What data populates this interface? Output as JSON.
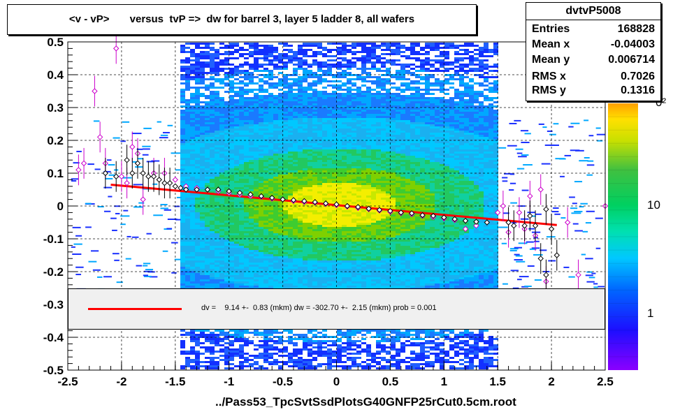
{
  "title": "<v - vP>       versus  tvP =>  dw for barrel 3, layer 5 ladder 8, all wafers",
  "stats": {
    "name": "dvtvP5008",
    "rows": [
      {
        "key": "Entries",
        "value": "168828"
      },
      {
        "key": "Mean x",
        "value": "-0.04003"
      },
      {
        "key": "Mean y",
        "value": "0.006714"
      },
      {
        "key": "RMS x",
        "value": "0.7026"
      },
      {
        "key": "RMS y",
        "value": "0.1316"
      }
    ]
  },
  "fit_text": "dv =    9.14 +-  0.83 (mkm) dw = -302.70 +-  2.15 (mkm) prob = 0.001",
  "file_label": "../Pass53_TpcSvtSsdPlotsG40GNFP25rCut0.5cm.root",
  "colors": {
    "fit": "#ff0000",
    "profile_black": "#000000",
    "profile_magenta": "#cc00cc"
  },
  "chart_data": {
    "type": "heatmap",
    "xlim": [
      -2.5,
      2.5
    ],
    "ylim": [
      -0.5,
      0.5
    ],
    "x_ticks": [
      "-2.5",
      "-2",
      "-1.5",
      "-1",
      "-0.5",
      "0",
      "0.5",
      "1",
      "1.5",
      "2",
      "2.5"
    ],
    "y_ticks": [
      "0.5",
      "0.4",
      "0.3",
      "0.2",
      "0.1",
      "0",
      "-0.1",
      "-0.2",
      "-0.3",
      "-0.4",
      "-0.5"
    ],
    "z_scale": "log",
    "z_labels": [
      "10",
      "1"
    ],
    "z_exponent_fragment": "0²",
    "grid": true,
    "fit_line": {
      "x": [
        -2.1,
        2.05
      ],
      "y": [
        0.065,
        -0.058
      ]
    },
    "profile_black": [
      [
        -2.15,
        0.1
      ],
      [
        -2.05,
        0.09
      ],
      [
        -1.95,
        0.14
      ],
      [
        -1.9,
        0.1
      ],
      [
        -1.85,
        0.13
      ],
      [
        -1.8,
        0.1
      ],
      [
        -1.75,
        0.09
      ],
      [
        -1.7,
        0.09
      ],
      [
        -1.65,
        0.08
      ],
      [
        -1.6,
        0.07
      ],
      [
        -1.55,
        0.07
      ],
      [
        -1.5,
        0.06
      ],
      [
        -1.45,
        0.055
      ],
      [
        -1.4,
        0.05
      ],
      [
        -1.3,
        0.05
      ],
      [
        -1.2,
        0.05
      ],
      [
        -1.1,
        0.05
      ],
      [
        -1.0,
        0.045
      ],
      [
        -0.9,
        0.04
      ],
      [
        -0.8,
        0.035
      ],
      [
        -0.7,
        0.03
      ],
      [
        -0.6,
        0.025
      ],
      [
        -0.5,
        0.02
      ],
      [
        -0.4,
        0.018
      ],
      [
        -0.3,
        0.015
      ],
      [
        -0.2,
        0.012
      ],
      [
        -0.1,
        0.008
      ],
      [
        0.0,
        0.005
      ],
      [
        0.1,
        0.0
      ],
      [
        0.2,
        -0.003
      ],
      [
        0.3,
        -0.008
      ],
      [
        0.4,
        -0.012
      ],
      [
        0.5,
        -0.015
      ],
      [
        0.6,
        -0.02
      ],
      [
        0.7,
        -0.022
      ],
      [
        0.8,
        -0.028
      ],
      [
        0.9,
        -0.03
      ],
      [
        1.0,
        -0.035
      ],
      [
        1.1,
        -0.04
      ],
      [
        1.2,
        -0.045
      ],
      [
        1.3,
        -0.048
      ],
      [
        1.4,
        -0.05
      ],
      [
        1.6,
        -0.05
      ],
      [
        1.65,
        -0.06
      ],
      [
        1.75,
        -0.06
      ],
      [
        1.8,
        -0.03
      ],
      [
        1.85,
        -0.06
      ],
      [
        1.9,
        -0.16
      ],
      [
        1.95,
        -0.01
      ],
      [
        2.0,
        -0.07
      ],
      [
        2.05,
        -0.15
      ],
      [
        1.95,
        -0.21
      ]
    ],
    "profile_magenta": [
      [
        -2.4,
        0.11
      ],
      [
        -2.35,
        0.13
      ],
      [
        -2.25,
        0.35
      ],
      [
        -2.2,
        0.21
      ],
      [
        -2.15,
        0.13
      ],
      [
        -2.05,
        0.48
      ],
      [
        -2.0,
        0.09
      ],
      [
        -1.95,
        0.07
      ],
      [
        -1.9,
        0.18
      ],
      [
        -1.85,
        0.16
      ],
      [
        -1.8,
        0.02
      ],
      [
        -1.7,
        0.1
      ],
      [
        -1.6,
        0.1
      ],
      [
        -1.5,
        0.08
      ],
      [
        -1.4,
        0.06
      ],
      [
        -1.3,
        0.055
      ],
      [
        -1.2,
        0.05
      ],
      [
        -1.1,
        0.045
      ],
      [
        -1.0,
        0.04
      ],
      [
        -0.9,
        0.035
      ],
      [
        -0.8,
        0.03
      ],
      [
        -0.7,
        0.028
      ],
      [
        -0.6,
        0.022
      ],
      [
        -0.5,
        0.02
      ],
      [
        -0.4,
        0.015
      ],
      [
        -0.3,
        0.012
      ],
      [
        -0.2,
        0.01
      ],
      [
        -0.1,
        0.006
      ],
      [
        0.0,
        0.002
      ],
      [
        0.1,
        -0.002
      ],
      [
        0.2,
        -0.006
      ],
      [
        0.3,
        -0.01
      ],
      [
        0.4,
        -0.014
      ],
      [
        0.5,
        -0.018
      ],
      [
        0.6,
        -0.022
      ],
      [
        0.7,
        -0.025
      ],
      [
        0.8,
        -0.03
      ],
      [
        0.9,
        -0.034
      ],
      [
        1.0,
        -0.038
      ],
      [
        1.1,
        -0.043
      ],
      [
        1.2,
        -0.07
      ],
      [
        1.3,
        -0.06
      ],
      [
        1.5,
        -0.02
      ],
      [
        1.55,
        0.0
      ],
      [
        1.6,
        -0.08
      ],
      [
        1.7,
        -0.02
      ],
      [
        1.75,
        -0.07
      ],
      [
        1.8,
        0.03
      ],
      [
        1.85,
        -0.09
      ],
      [
        1.9,
        0.05
      ],
      [
        1.95,
        -0.23
      ],
      [
        2.15,
        -0.05
      ],
      [
        2.25,
        -0.21
      ],
      [
        2.5,
        0.0
      ]
    ]
  }
}
